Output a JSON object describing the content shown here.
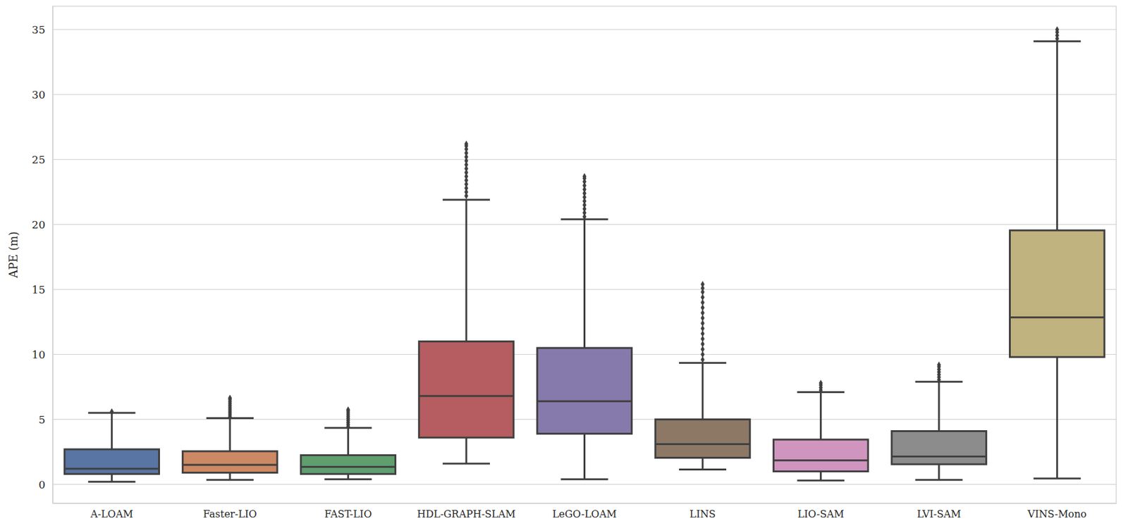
{
  "chart_data": {
    "type": "box",
    "ylabel": "APE (m)",
    "categories": [
      "A-LOAM",
      "Faster-LIO",
      "FAST-LIO",
      "HDL-GRAPH-SLAM",
      "LeGO-LOAM",
      "LINS",
      "LIO-SAM",
      "LVI-SAM",
      "VINS-Mono"
    ],
    "colors": [
      "#5875a4",
      "#cc8963",
      "#5f9e6e",
      "#b55d60",
      "#857aab",
      "#8d7866",
      "#d095bf",
      "#8c8c8c",
      "#c1b37f"
    ],
    "boxes": [
      {
        "whislo": 0.2,
        "q1": 0.8,
        "med": 1.2,
        "q3": 2.7,
        "whishi": 5.5,
        "fliers": [
          5.6
        ]
      },
      {
        "whislo": 0.35,
        "q1": 0.9,
        "med": 1.5,
        "q3": 2.55,
        "whishi": 5.1,
        "fliers": [
          5.2,
          5.35,
          5.5,
          5.65,
          5.8,
          5.95,
          6.1,
          6.25,
          6.4,
          6.55,
          6.65
        ]
      },
      {
        "whislo": 0.4,
        "q1": 0.8,
        "med": 1.35,
        "q3": 2.25,
        "whishi": 4.35,
        "fliers": [
          4.45,
          4.6,
          4.75,
          4.9,
          5.05,
          5.2,
          5.35,
          5.5,
          5.65,
          5.75
        ]
      },
      {
        "whislo": 1.6,
        "q1": 3.6,
        "med": 6.8,
        "q3": 11.0,
        "whishi": 21.9,
        "fliers": [
          22.2,
          22.5,
          22.8,
          23.1,
          23.4,
          23.7,
          24.0,
          24.3,
          24.6,
          24.9,
          25.2,
          25.5,
          25.8,
          26.05,
          26.2
        ]
      },
      {
        "whislo": 0.4,
        "q1": 3.9,
        "med": 6.4,
        "q3": 10.5,
        "whishi": 20.4,
        "fliers": [
          20.6,
          20.9,
          21.2,
          21.5,
          21.8,
          22.1,
          22.4,
          22.7,
          23.0,
          23.3,
          23.55,
          23.7
        ]
      },
      {
        "whislo": 1.15,
        "q1": 2.05,
        "med": 3.1,
        "q3": 5.0,
        "whishi": 9.35,
        "fliers": [
          9.6,
          10.0,
          10.4,
          10.8,
          11.2,
          11.6,
          12.0,
          12.4,
          12.8,
          13.2,
          13.6,
          14.0,
          14.4,
          14.8,
          15.1,
          15.4
        ]
      },
      {
        "whislo": 0.3,
        "q1": 1.0,
        "med": 1.85,
        "q3": 3.45,
        "whishi": 7.1,
        "fliers": [
          7.25,
          7.45,
          7.65,
          7.8
        ]
      },
      {
        "whislo": 0.35,
        "q1": 1.55,
        "med": 2.15,
        "q3": 4.1,
        "whishi": 7.9,
        "fliers": [
          8.05,
          8.25,
          8.45,
          8.65,
          8.85,
          9.05,
          9.2
        ]
      },
      {
        "whislo": 0.45,
        "q1": 9.8,
        "med": 12.85,
        "q3": 19.55,
        "whishi": 34.1,
        "fliers": [
          34.3,
          34.55,
          34.8,
          35.0
        ]
      }
    ],
    "ylim": [
      -1.45,
      36.8
    ],
    "yticks": [
      0,
      5,
      10,
      15,
      20,
      25,
      30,
      35
    ],
    "grid": true
  }
}
